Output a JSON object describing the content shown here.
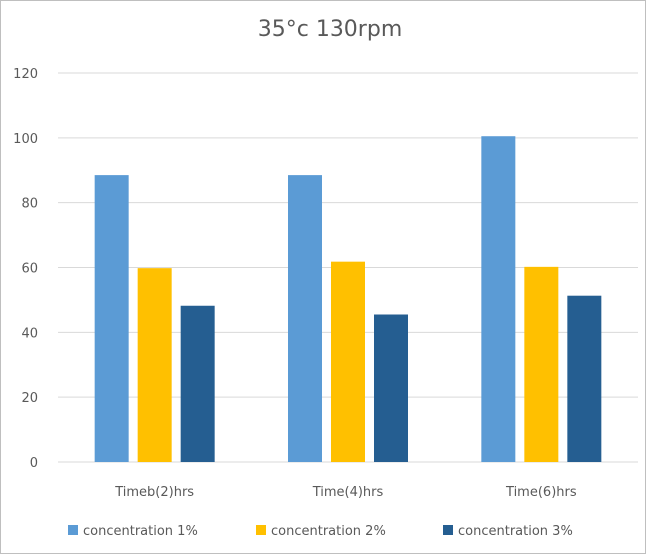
{
  "chart_data": {
    "type": "bar",
    "title": "35°c 130rpm",
    "categories": [
      "Timeb(2)hrs",
      "Time(4)hrs",
      "Time(6)hrs"
    ],
    "series": [
      {
        "name": "concentration 1%",
        "values": [
          88.5,
          88.5,
          100.5
        ],
        "color": "#5b9bd5"
      },
      {
        "name": "concentration 2%",
        "values": [
          59.8,
          61.8,
          60.2
        ],
        "color": "#ffc000"
      },
      {
        "name": "concentration 3%",
        "values": [
          48.2,
          45.5,
          51.3
        ],
        "color": "#255e91"
      }
    ],
    "yticks": [
      0,
      20,
      40,
      60,
      80,
      100,
      120
    ],
    "ylim": [
      0,
      120
    ],
    "grid": true,
    "legend_position": "bottom"
  }
}
